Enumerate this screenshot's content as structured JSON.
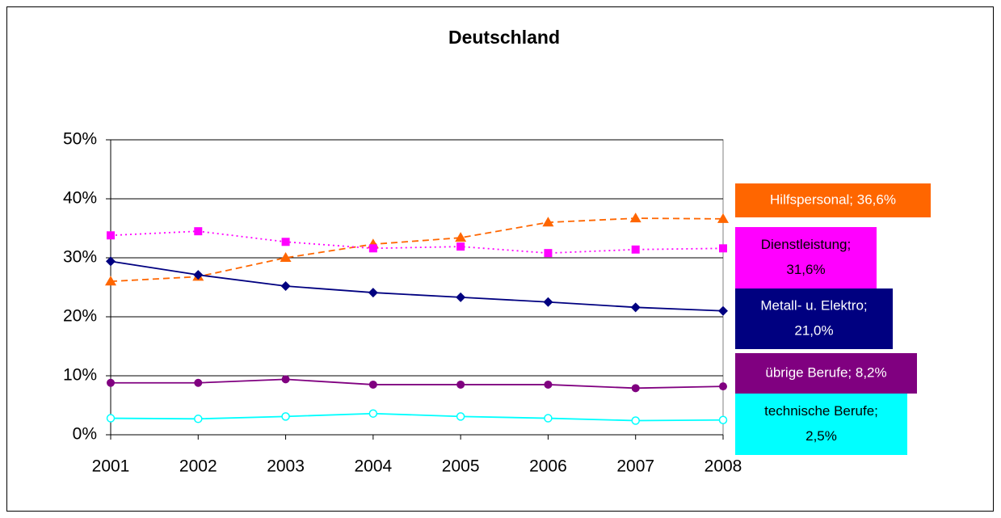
{
  "chart_data": {
    "type": "line",
    "title": "Deutschland",
    "categories": [
      "2001",
      "2002",
      "2003",
      "2004",
      "2005",
      "2006",
      "2007",
      "2008"
    ],
    "ylim": [
      0,
      50
    ],
    "yticks": [
      {
        "value": 0,
        "label": "0%"
      },
      {
        "value": 10,
        "label": "10%"
      },
      {
        "value": 20,
        "label": "20%"
      },
      {
        "value": 30,
        "label": "30%"
      },
      {
        "value": 40,
        "label": "40%"
      },
      {
        "value": 50,
        "label": "50%"
      }
    ],
    "grid": true,
    "series": [
      {
        "name": "Hilfspersonal",
        "color": "#ff6600",
        "marker": "triangle",
        "dash": "8,5",
        "values": [
          26,
          26.8,
          30,
          32.3,
          33.4,
          36,
          36.7,
          36.6
        ],
        "label_lines": [
          "Hilfspersonal; 36,6%"
        ]
      },
      {
        "name": "Dienstleistung",
        "color": "#ff00ff",
        "marker": "square",
        "dash": "2,4",
        "values": [
          33.8,
          34.5,
          32.7,
          31.6,
          31.9,
          30.8,
          31.4,
          31.6
        ],
        "label_lines": [
          "Dienstleistung;",
          "31,6%"
        ]
      },
      {
        "name": "Metall- u. Elektro",
        "color": "#000080",
        "marker": "diamond",
        "dash": "",
        "values": [
          29.4,
          27.1,
          25.2,
          24.1,
          23.3,
          22.5,
          21.6,
          21.0
        ],
        "label_lines": [
          "Metall- u. Elektro;",
          "21,0%"
        ]
      },
      {
        "name": "übrige Berufe",
        "color": "#800080",
        "marker": "circle",
        "dash": "",
        "values": [
          8.8,
          8.8,
          9.4,
          8.5,
          8.5,
          8.5,
          7.9,
          8.2
        ],
        "label_lines": [
          "übrige Berufe; 8,2%"
        ]
      },
      {
        "name": "technische Berufe",
        "color": "#00ffff",
        "marker": "open-circle",
        "dash": "",
        "values": [
          2.8,
          2.7,
          3.1,
          3.6,
          3.1,
          2.8,
          2.4,
          2.5
        ],
        "label_lines": [
          "technische Berufe;",
          "2,5%"
        ]
      }
    ]
  }
}
